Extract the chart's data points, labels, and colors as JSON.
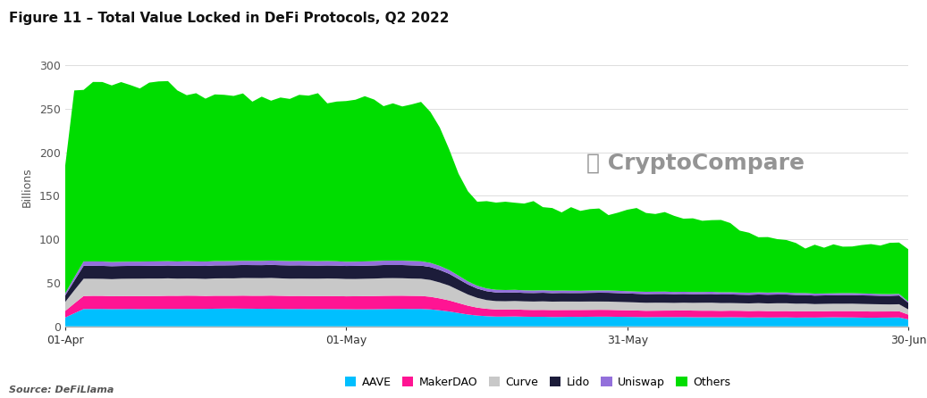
{
  "title": "Figure 11 – Total Value Locked in DeFi Protocols, Q2 2022",
  "ylabel": "Billions",
  "source": "Source: DeFiLlama",
  "colors": {
    "AAVE": "#00BFFF",
    "MakerDAO": "#FF1493",
    "Curve": "#C8C8C8",
    "Lido": "#1C1C3A",
    "Uniswap": "#9370DB",
    "Others": "#00DD00"
  },
  "xtick_labels": [
    "01-Apr",
    "01-May",
    "31-May",
    "30-Jun"
  ],
  "ylim": [
    0,
    320
  ],
  "yticks": [
    0,
    50,
    100,
    150,
    200,
    250,
    300
  ],
  "background_color": "#ffffff",
  "n_points": 91
}
